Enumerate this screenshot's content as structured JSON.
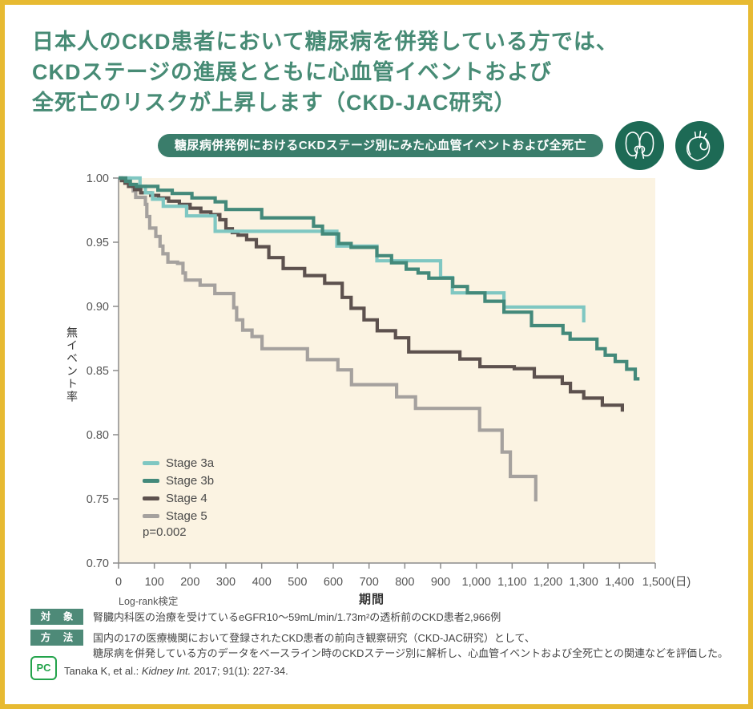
{
  "title": {
    "lines": [
      "日本人のCKD患者において糖尿病を併発している方では、",
      "CKDステージの進展とともに心血管イベントおよび",
      "全死亡のリスクが上昇します（CKD-JAC研究）"
    ]
  },
  "subtitle_badge": "糖尿病併発例におけるCKDステージ別にみた心血管イベントおよび全死亡",
  "icons": [
    "kidney-icon",
    "heart-icon"
  ],
  "chart_data": {
    "type": "line",
    "subtype": "kaplan-meier-step",
    "xlabel": "期間",
    "x_unit": "(日)",
    "ylabel": "無イベント率",
    "xlim": [
      0,
      1500
    ],
    "ylim": [
      0.7,
      1.0
    ],
    "grid": false,
    "plot_bg": "#fbf3e2",
    "axis_color": "#8c8c8c",
    "legend_position": "lower-left-inside",
    "p_value": "p=0.002",
    "footnote": "Log-rank検定",
    "y_ticks": [
      {
        "v": 1.0,
        "label": "1.00"
      },
      {
        "v": 0.95,
        "label": "0.95"
      },
      {
        "v": 0.9,
        "label": "0.90"
      },
      {
        "v": 0.85,
        "label": "0.85"
      },
      {
        "v": 0.8,
        "label": "0.80"
      },
      {
        "v": 0.75,
        "label": "0.75"
      },
      {
        "v": 0.7,
        "label": "0.70"
      }
    ],
    "x_ticks": [
      {
        "v": 0,
        "label": "0"
      },
      {
        "v": 100,
        "label": "100"
      },
      {
        "v": 200,
        "label": "200"
      },
      {
        "v": 300,
        "label": "300"
      },
      {
        "v": 400,
        "label": "400"
      },
      {
        "v": 500,
        "label": "500"
      },
      {
        "v": 600,
        "label": "600"
      },
      {
        "v": 700,
        "label": "700"
      },
      {
        "v": 800,
        "label": "800"
      },
      {
        "v": 900,
        "label": "900"
      },
      {
        "v": 1000,
        "label": "1,000"
      },
      {
        "v": 1100,
        "label": "1,100"
      },
      {
        "v": 1200,
        "label": "1,200"
      },
      {
        "v": 1300,
        "label": "1,300"
      },
      {
        "v": 1400,
        "label": "1,400"
      },
      {
        "v": 1500,
        "label": "1,500",
        "unit": "(日)"
      }
    ],
    "series": [
      {
        "name": "Stage 3a",
        "color": "#7fc7c2",
        "points": [
          [
            0,
            1.0
          ],
          [
            60,
            0.9935
          ],
          [
            75,
            0.9885
          ],
          [
            95,
            0.9835
          ],
          [
            125,
            0.978
          ],
          [
            190,
            0.9705
          ],
          [
            270,
            0.9585
          ],
          [
            610,
            0.947
          ],
          [
            722,
            0.9355
          ],
          [
            900,
            0.9225
          ],
          [
            933,
            0.9105
          ],
          [
            1077,
            0.8995
          ],
          [
            1300,
            0.8875
          ]
        ]
      },
      {
        "name": "Stage 3b",
        "color": "#43897a",
        "points": [
          [
            0,
            1.0
          ],
          [
            20,
            0.9975
          ],
          [
            33,
            0.995
          ],
          [
            50,
            0.9935
          ],
          [
            110,
            0.9905
          ],
          [
            150,
            0.988
          ],
          [
            205,
            0.9845
          ],
          [
            270,
            0.9815
          ],
          [
            300,
            0.9755
          ],
          [
            400,
            0.969
          ],
          [
            545,
            0.9625
          ],
          [
            570,
            0.9565
          ],
          [
            615,
            0.949
          ],
          [
            650,
            0.946
          ],
          [
            722,
            0.9395
          ],
          [
            763,
            0.934
          ],
          [
            804,
            0.929
          ],
          [
            837,
            0.926
          ],
          [
            867,
            0.922
          ],
          [
            934,
            0.9155
          ],
          [
            975,
            0.9105
          ],
          [
            1024,
            0.904
          ],
          [
            1077,
            0.8955
          ],
          [
            1154,
            0.885
          ],
          [
            1242,
            0.879
          ],
          [
            1262,
            0.8745
          ],
          [
            1337,
            0.867
          ],
          [
            1360,
            0.862
          ],
          [
            1388,
            0.857
          ],
          [
            1420,
            0.851
          ],
          [
            1444,
            0.8435
          ],
          [
            1456,
            0.8435
          ]
        ]
      },
      {
        "name": "Stage 4",
        "color": "#5d514e",
        "points": [
          [
            0,
            1.0
          ],
          [
            8,
            0.998
          ],
          [
            18,
            0.996
          ],
          [
            28,
            0.9935
          ],
          [
            45,
            0.991
          ],
          [
            62,
            0.9885
          ],
          [
            90,
            0.9865
          ],
          [
            112,
            0.9845
          ],
          [
            140,
            0.982
          ],
          [
            170,
            0.9795
          ],
          [
            200,
            0.9765
          ],
          [
            230,
            0.9735
          ],
          [
            258,
            0.9715
          ],
          [
            283,
            0.9675
          ],
          [
            300,
            0.9605
          ],
          [
            318,
            0.9575
          ],
          [
            334,
            0.9555
          ],
          [
            358,
            0.952
          ],
          [
            385,
            0.9465
          ],
          [
            420,
            0.938
          ],
          [
            460,
            0.9295
          ],
          [
            520,
            0.924
          ],
          [
            576,
            0.918
          ],
          [
            625,
            0.907
          ],
          [
            650,
            0.8985
          ],
          [
            686,
            0.8895
          ],
          [
            723,
            0.881
          ],
          [
            774,
            0.8755
          ],
          [
            811,
            0.8645
          ],
          [
            954,
            0.859
          ],
          [
            1010,
            0.853
          ],
          [
            1106,
            0.8515
          ],
          [
            1162,
            0.845
          ],
          [
            1240,
            0.84
          ],
          [
            1263,
            0.8335
          ],
          [
            1300,
            0.8285
          ],
          [
            1352,
            0.823
          ],
          [
            1408,
            0.818
          ]
        ]
      },
      {
        "name": "Stage 5",
        "color": "#a5a19e",
        "points": [
          [
            0,
            1.0
          ],
          [
            30,
            0.995
          ],
          [
            41,
            0.99
          ],
          [
            48,
            0.985
          ],
          [
            75,
            0.9795
          ],
          [
            79,
            0.97
          ],
          [
            87,
            0.961
          ],
          [
            104,
            0.9545
          ],
          [
            116,
            0.947
          ],
          [
            124,
            0.941
          ],
          [
            138,
            0.9345
          ],
          [
            165,
            0.9335
          ],
          [
            180,
            0.926
          ],
          [
            187,
            0.9205
          ],
          [
            228,
            0.9165
          ],
          [
            269,
            0.91
          ],
          [
            322,
            0.899
          ],
          [
            330,
            0.8895
          ],
          [
            347,
            0.8815
          ],
          [
            373,
            0.8765
          ],
          [
            401,
            0.867
          ],
          [
            528,
            0.8585
          ],
          [
            613,
            0.8505
          ],
          [
            651,
            0.839
          ],
          [
            777,
            0.8295
          ],
          [
            830,
            0.8205
          ],
          [
            1009,
            0.8035
          ],
          [
            1072,
            0.7865
          ],
          [
            1095,
            0.7675
          ],
          [
            1166,
            0.748
          ]
        ]
      }
    ]
  },
  "footer": {
    "subject_badge": "対 象",
    "subject_text": "腎臓内科医の治療を受けているeGFR10～59mL/min/1.73m²の透析前のCKD患者2,966例",
    "method_badge": "方 法",
    "method_lines": [
      "国内の17の医療機関において登録されたCKD患者の前向き観察研究（CKD-JAC研究）として、",
      "糖尿病を併発している方のデータをベースライン時のCKDステージ別に解析し、心血管イベントおよび全死亡との関連などを評価した。"
    ]
  },
  "citation": {
    "logo": "PC",
    "prefix": "Tanaka K, et al.: ",
    "journal": "Kidney Int.",
    "suffix": " 2017; 91(1): 227-34."
  },
  "colors": {
    "frame_yellow": "#e7ba32",
    "frame_green": "#4e8a78",
    "frame_gray": "#7b7470",
    "title_green": "#478b75",
    "badge_bg": "#3a7d6b",
    "icon_circle_bg": "#1d6a55",
    "pc_logo_green": "#23a34b"
  }
}
